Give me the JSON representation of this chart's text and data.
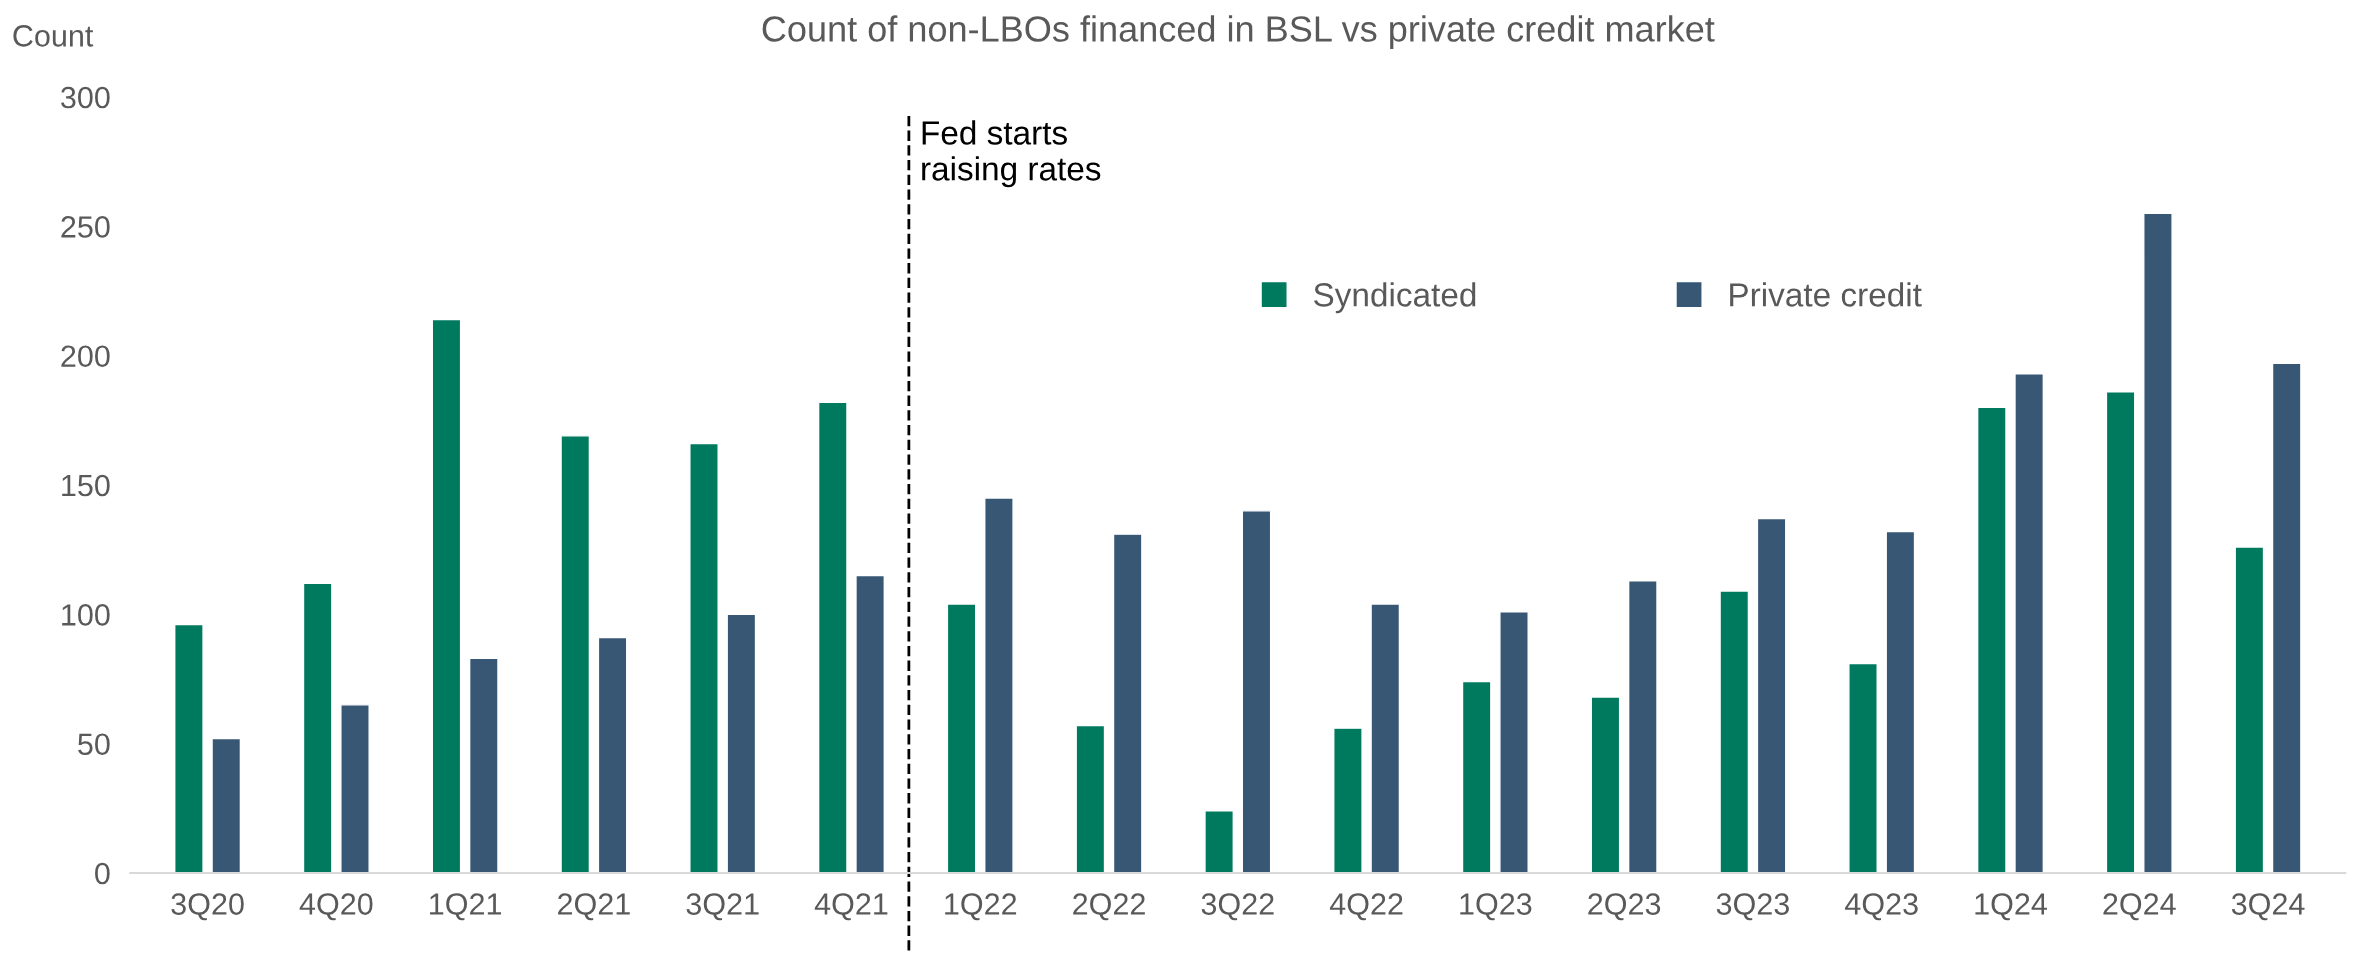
{
  "chart_data": {
    "type": "bar",
    "title": "Count of non-LBOs financed in BSL vs private credit market",
    "ylabel": "Count",
    "categories": [
      "3Q20",
      "4Q20",
      "1Q21",
      "2Q21",
      "3Q21",
      "4Q21",
      "1Q22",
      "2Q22",
      "3Q22",
      "4Q22",
      "1Q23",
      "2Q23",
      "3Q23",
      "4Q23",
      "1Q24",
      "2Q24",
      "3Q24"
    ],
    "series": [
      {
        "name": "Syndicated",
        "color": "#007a5e",
        "values": [
          96,
          112,
          214,
          169,
          166,
          182,
          104,
          57,
          24,
          56,
          74,
          68,
          109,
          81,
          180,
          186,
          126
        ]
      },
      {
        "name": "Private credit",
        "color": "#375775",
        "values": [
          52,
          65,
          83,
          91,
          100,
          115,
          145,
          131,
          140,
          104,
          101,
          113,
          137,
          132,
          193,
          255,
          197
        ]
      }
    ],
    "ylim": [
      0,
      300
    ],
    "yticks": [
      0,
      50,
      100,
      150,
      200,
      250,
      300
    ],
    "annotations": [
      "Fed starts\nraising rates"
    ],
    "legend": "top",
    "grid": false
  }
}
